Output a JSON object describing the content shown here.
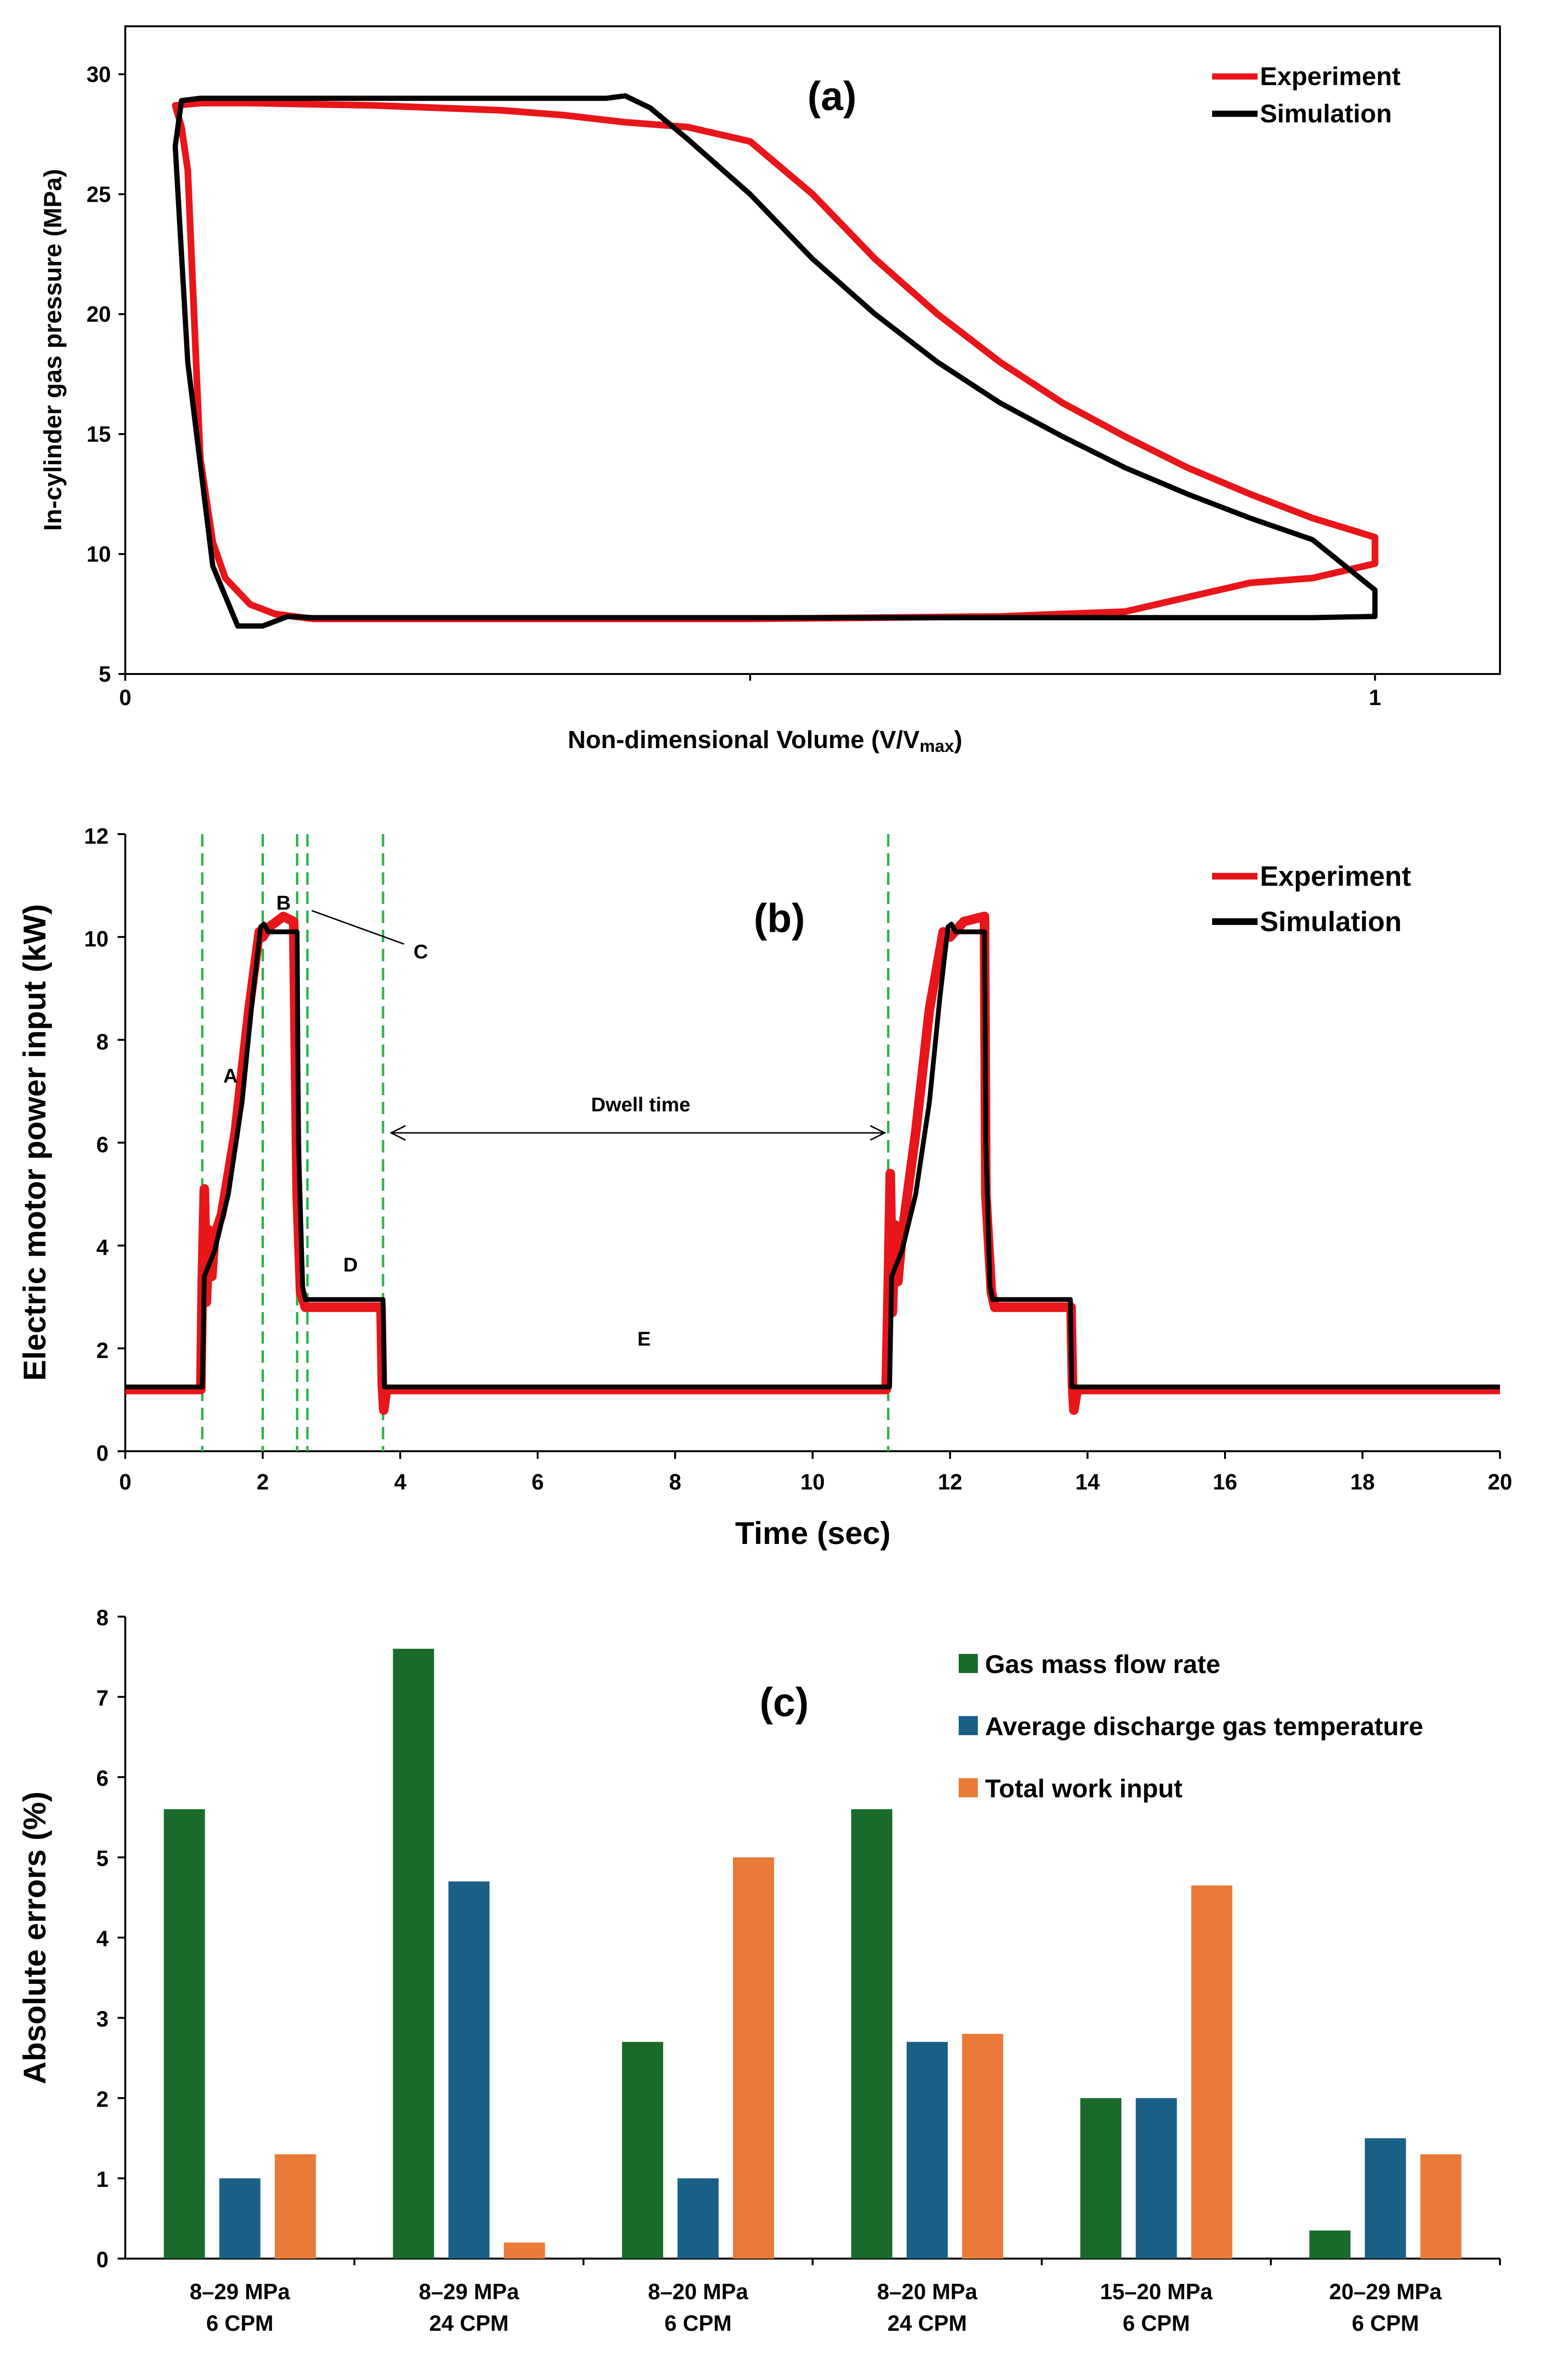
{
  "chart_data": [
    {
      "panel_label": "(a)",
      "type": "line",
      "title": "",
      "xlabel": "Non-dimensional Volume (V/V",
      "xlabel_subscript": "max",
      "xlabel_suffix": ")",
      "ylabel": "In-cylinder gas pressure (MPa)",
      "xlim": [
        0,
        1.1
      ],
      "ylim": [
        5,
        32
      ],
      "x_ticks": [
        0,
        0.5,
        1
      ],
      "x_tick_labels": [
        "0",
        "",
        "1"
      ],
      "y_ticks": [
        5,
        10,
        15,
        20,
        25,
        30
      ],
      "y_tick_labels": [
        "5",
        "10",
        "15",
        "20",
        "25",
        "30"
      ],
      "grid": false,
      "legend_position": "top-right",
      "series": [
        {
          "name": "Experiment",
          "color": "#e8151a",
          "x": [
            0.04,
            0.06,
            0.1,
            0.15,
            0.2,
            0.25,
            0.3,
            0.35,
            0.4,
            0.45,
            0.5,
            0.55,
            0.6,
            0.65,
            0.7,
            0.75,
            0.8,
            0.85,
            0.9,
            0.95,
            1.0,
            1.0,
            0.95,
            0.9,
            0.8,
            0.7,
            0.6,
            0.5,
            0.4,
            0.3,
            0.2,
            0.15,
            0.12,
            0.1,
            0.08,
            0.07,
            0.06,
            0.055,
            0.05,
            0.045,
            0.04
          ],
          "y": [
            28.7,
            28.8,
            28.8,
            28.75,
            28.7,
            28.6,
            28.5,
            28.3,
            28.0,
            27.8,
            27.2,
            25.0,
            22.3,
            20.0,
            18.0,
            16.3,
            14.9,
            13.6,
            12.5,
            11.5,
            10.7,
            9.6,
            9.0,
            8.8,
            7.6,
            7.4,
            7.35,
            7.3,
            7.3,
            7.3,
            7.3,
            7.3,
            7.5,
            7.9,
            9.0,
            10.5,
            14.0,
            20.0,
            26.0,
            27.8,
            28.7
          ]
        },
        {
          "name": "Simulation",
          "color": "#000000",
          "x": [
            0.045,
            0.06,
            0.1,
            0.2,
            0.3,
            0.35,
            0.385,
            0.4,
            0.42,
            0.45,
            0.5,
            0.55,
            0.6,
            0.65,
            0.7,
            0.75,
            0.8,
            0.85,
            0.9,
            0.95,
            1.0,
            1.0,
            0.95,
            0.9,
            0.8,
            0.7,
            0.6,
            0.5,
            0.4,
            0.3,
            0.2,
            0.15,
            0.13,
            0.11,
            0.09,
            0.07,
            0.05,
            0.04,
            0.045
          ],
          "y": [
            28.9,
            29.0,
            29.0,
            29.0,
            29.0,
            29.0,
            29.0,
            29.1,
            28.6,
            27.3,
            25.0,
            22.3,
            20.0,
            18.0,
            16.3,
            14.9,
            13.6,
            12.5,
            11.5,
            10.6,
            8.5,
            7.4,
            7.35,
            7.35,
            7.35,
            7.35,
            7.35,
            7.35,
            7.35,
            7.35,
            7.35,
            7.35,
            7.4,
            7.0,
            7.0,
            9.5,
            18.0,
            27.0,
            28.9
          ]
        }
      ]
    },
    {
      "panel_label": "(b)",
      "type": "line",
      "title": "",
      "xlabel": "Time (sec)",
      "ylabel": "Electric motor power input (kW)",
      "xlim": [
        0,
        20
      ],
      "ylim": [
        0,
        12
      ],
      "x_ticks": [
        0,
        2,
        4,
        6,
        8,
        10,
        12,
        14,
        16,
        18,
        20
      ],
      "x_tick_labels": [
        "0",
        "2",
        "4",
        "6",
        "8",
        "10",
        "12",
        "14",
        "16",
        "18",
        "20"
      ],
      "y_ticks": [
        0,
        2,
        4,
        6,
        8,
        10,
        12
      ],
      "y_tick_labels": [
        "0",
        "2",
        "4",
        "6",
        "8",
        "10",
        "12"
      ],
      "grid": false,
      "legend_position": "top-right",
      "phase_boundaries": [
        1.12,
        2.0,
        2.5,
        2.65,
        3.75,
        11.1
      ],
      "phase_boundary_color": "#2db34a",
      "series": [
        {
          "name": "Experiment",
          "color": "#e8151a",
          "x": [
            0,
            1.1,
            1.12,
            1.15,
            1.18,
            1.22,
            1.26,
            1.3,
            1.4,
            1.6,
            1.8,
            1.95,
            2.0,
            2.1,
            2.3,
            2.45,
            2.5,
            2.55,
            2.62,
            2.7,
            3.0,
            3.72,
            3.74,
            3.76,
            3.8,
            4.0,
            11.07,
            11.1,
            11.13,
            11.16,
            11.2,
            11.24,
            11.3,
            11.5,
            11.7,
            11.9,
            12.0,
            12.2,
            12.5,
            12.52,
            12.6,
            12.65,
            13.0,
            13.76,
            13.78,
            13.8,
            13.85,
            14.0,
            20.0
          ],
          "y": [
            1.2,
            1.2,
            3.3,
            5.1,
            2.9,
            4.3,
            3.4,
            4.2,
            4.6,
            6.2,
            8.6,
            10.1,
            10.0,
            10.2,
            10.4,
            10.3,
            5.0,
            3.1,
            2.8,
            2.8,
            2.8,
            2.8,
            1.3,
            0.8,
            1.2,
            1.2,
            1.2,
            3.2,
            5.4,
            2.7,
            4.4,
            3.3,
            4.2,
            6.2,
            8.6,
            10.1,
            10.0,
            10.3,
            10.4,
            5.0,
            3.1,
            2.8,
            2.8,
            2.8,
            1.3,
            0.8,
            1.2,
            1.2,
            1.2
          ]
        },
        {
          "name": "Simulation",
          "color": "#000000",
          "x": [
            0,
            1.12,
            1.15,
            1.3,
            1.5,
            1.7,
            1.85,
            1.97,
            2.02,
            2.08,
            2.1,
            2.5,
            2.52,
            2.58,
            2.62,
            3.75,
            3.77,
            20.0
          ],
          "y": [
            1.25,
            1.25,
            3.4,
            3.9,
            5.0,
            6.8,
            8.8,
            10.2,
            10.25,
            10.1,
            10.1,
            10.1,
            6.0,
            3.2,
            2.95,
            2.95,
            1.25,
            1.25
          ],
          "repeat_offset": 10.0,
          "repeat_range": [
            11.12,
            13.77
          ]
        }
      ],
      "annotations": [
        {
          "text": "A",
          "x": 1.5,
          "y": 7.3
        },
        {
          "text": "B",
          "x": 2.28,
          "y": 10.4
        },
        {
          "text": "C",
          "x": 4.4,
          "y": 9.7
        },
        {
          "text": "D",
          "x": 3.25,
          "y": 3.6
        },
        {
          "text": "E",
          "x": 7.5,
          "y": 2.1
        },
        {
          "text": "Dwell time",
          "x": 7.4,
          "y": 6.7
        }
      ]
    },
    {
      "panel_label": "(c)",
      "type": "bar",
      "title": "",
      "xlabel": "",
      "ylabel": "Absolute errors (%)",
      "ylim": [
        0,
        8
      ],
      "y_ticks": [
        0,
        1,
        2,
        3,
        4,
        5,
        6,
        7,
        8
      ],
      "y_tick_labels": [
        "0",
        "1",
        "2",
        "3",
        "4",
        "5",
        "6",
        "7",
        "8"
      ],
      "grid": false,
      "legend_position": "top-right",
      "categories": [
        [
          "8–29 MPa",
          "6 CPM"
        ],
        [
          "8–29 MPa",
          "24 CPM"
        ],
        [
          "8–20 MPa",
          "6 CPM"
        ],
        [
          "8–20 MPa",
          "24 CPM"
        ],
        [
          "15–20 MPa",
          "6 CPM"
        ],
        [
          "20–29 MPa",
          "6 CPM"
        ]
      ],
      "series": [
        {
          "name": "Gas mass flow rate",
          "color": "#1a6b2a",
          "values": [
            5.6,
            7.6,
            2.7,
            5.6,
            2.0,
            0.35
          ]
        },
        {
          "name": "Average discharge gas temperature",
          "color": "#1a5f86",
          "values": [
            1.0,
            4.7,
            1.0,
            2.7,
            2.0,
            1.5
          ]
        },
        {
          "name": "Total work input",
          "color": "#ea7a38",
          "values": [
            1.3,
            0.2,
            5.0,
            2.8,
            4.65,
            1.3
          ]
        }
      ]
    }
  ]
}
